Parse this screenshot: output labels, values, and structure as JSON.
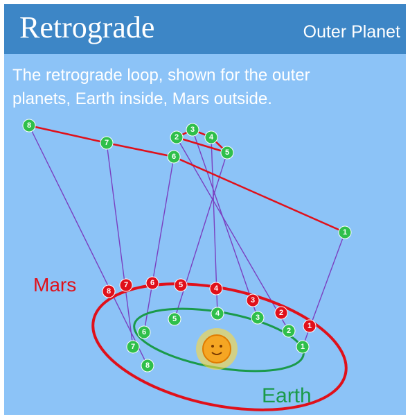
{
  "header": {
    "title": "Retrograde",
    "subtitle": "Outer Planet"
  },
  "description": [
    "The retrograde loop, shown for the outer",
    "planets, Earth inside, Mars outside."
  ],
  "labels": {
    "mars": "Mars",
    "earth": "Earth"
  },
  "earth_positions": [
    1,
    2,
    3,
    4,
    5,
    6,
    7,
    8
  ],
  "mars_positions": [
    1,
    2,
    3,
    4,
    5,
    6,
    7,
    8
  ],
  "sky_positions": [
    1,
    2,
    3,
    4,
    5,
    6,
    7,
    8
  ]
}
